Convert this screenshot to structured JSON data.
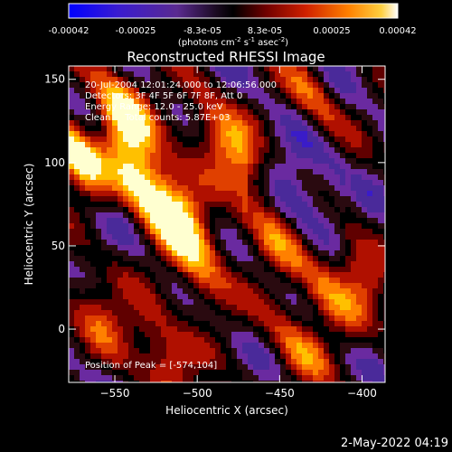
{
  "colorbar": {
    "ticks": [
      "-0.00042",
      "-0.00025",
      "-8.3e-05",
      "8.3e-05",
      "0.00025",
      "0.00042"
    ],
    "units_label": "(photons cm",
    "units_sup1": "-2",
    "units_mid": " s",
    "units_sup2": "-1",
    "units_end": " asec",
    "units_sup3": "-2",
    "units_close": ")"
  },
  "chart_data": {
    "type": "heatmap",
    "title": "Reconstructed RHESSI Image",
    "xlabel": "Heliocentric X (arcsec)",
    "ylabel": "Heliocentric Y (arcsec)",
    "xlim": [
      -578,
      -386
    ],
    "ylim": [
      -32,
      158
    ],
    "xticks": [
      -550,
      -500,
      -450,
      -400
    ],
    "xtick_labels": [
      "−550",
      "−500",
      "−450",
      "−400"
    ],
    "yticks": [
      0,
      50,
      100,
      150
    ],
    "ytick_labels": [
      "0",
      "50",
      "100",
      "150"
    ],
    "color_range": [
      -0.00042,
      0.00042
    ],
    "colormap": [
      "#1010ff",
      "#3a1cc8",
      "#4a2a9a",
      "#6a2aa0",
      "#2a0a10",
      "#000000",
      "#600000",
      "#b01000",
      "#e04000",
      "#ff8000",
      "#ffc000",
      "#ffffd0"
    ],
    "annotations": [
      "20-Jul-2004 12:01:24.000 to 12:06:56.000",
      "Detectors: 3F 4F 5F 6F 7F 8F, Att 0",
      "Energy Range: 12.0 - 25.0 keV",
      "Clean     Total counts: 5.87E+03"
    ],
    "peak_label": "Position of Peak = [-574,104]",
    "peak": [
      -574,
      104
    ]
  },
  "footer_timestamp": "2-May-2022 04:19"
}
